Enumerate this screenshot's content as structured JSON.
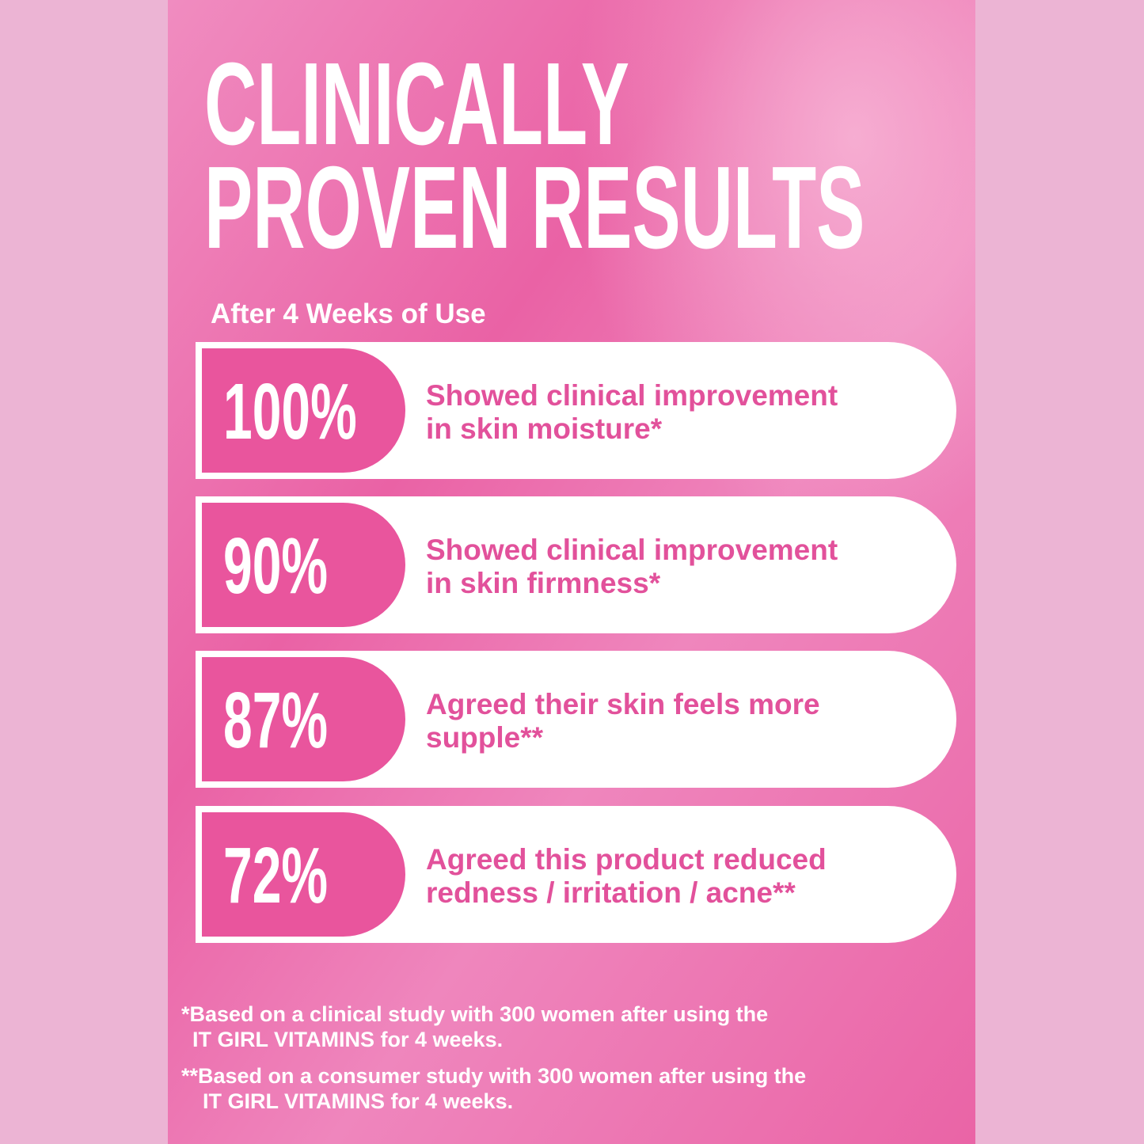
{
  "header": {
    "title_lines": [
      "CLINICALLY",
      "PROVEN RESULTS"
    ],
    "subtitle": "After 4 Weeks of Use"
  },
  "results": [
    {
      "percent": "100%",
      "lines": [
        "Showed clinical improvement",
        "in skin moisture*"
      ]
    },
    {
      "percent": "90%",
      "lines": [
        "Showed clinical improvement",
        "in skin firmness*"
      ]
    },
    {
      "percent": "87%",
      "lines": [
        "Agreed their skin feels more",
        "supple**"
      ]
    },
    {
      "percent": "72%",
      "lines": [
        "Agreed this product reduced",
        "redness / irritation / acne**"
      ]
    }
  ],
  "footnotes": [
    {
      "lines": [
        "*Based on a clinical study with 300 women after using the",
        "IT GIRL VITAMINS for 4 weeks."
      ]
    },
    {
      "lines": [
        "**Based on a consumer study with 300 women after using the",
        "IT GIRL VITAMINS for 4 weeks."
      ]
    }
  ]
}
